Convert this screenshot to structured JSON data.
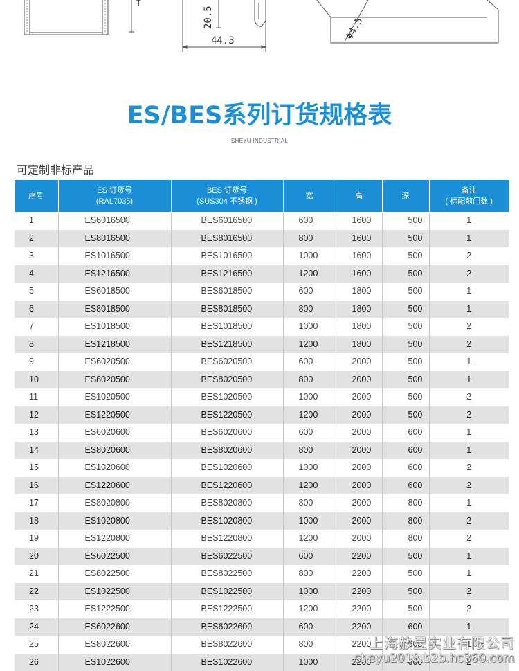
{
  "drawing": {
    "height_label": "20.5",
    "width_label": "44.3",
    "hole_label": "Φ4.5"
  },
  "title": "ES/BES系列订货规格表",
  "brand": "SHEYU INDUSTRIAL",
  "section": "可定制非标产品",
  "table": {
    "headers": [
      {
        "line1": "序号",
        "line2": ""
      },
      {
        "line1": "ES 订货号",
        "line2": "(RAL7035)"
      },
      {
        "line1": "BES 订货号",
        "line2": "(SUS304 不锈钢 )"
      },
      {
        "line1": "宽",
        "line2": ""
      },
      {
        "line1": "高",
        "line2": ""
      },
      {
        "line1": "深",
        "line2": ""
      },
      {
        "line1": "备注",
        "line2": "( 标配前门数 )"
      }
    ],
    "rows": [
      [
        "1",
        "ES6016500",
        "BES6016500",
        "600",
        "1600",
        "500",
        "1"
      ],
      [
        "2",
        "ES8016500",
        "BES8016500",
        "800",
        "1600",
        "500",
        "1"
      ],
      [
        "3",
        "ES1016500",
        "BES1016500",
        "1000",
        "1600",
        "500",
        "2"
      ],
      [
        "4",
        "ES1216500",
        "BES1216500",
        "1200",
        "1600",
        "500",
        "2"
      ],
      [
        "5",
        "ES6018500",
        "BES6018500",
        "600",
        "1800",
        "500",
        "1"
      ],
      [
        "6",
        "ES8018500",
        "BES8018500",
        "800",
        "1800",
        "500",
        "1"
      ],
      [
        "7",
        "ES1018500",
        "BES1018500",
        "1000",
        "1800",
        "500",
        "2"
      ],
      [
        "8",
        "ES1218500",
        "BES1218500",
        "1200",
        "1800",
        "500",
        "2"
      ],
      [
        "9",
        "ES6020500",
        "BES6020500",
        "600",
        "2000",
        "500",
        "1"
      ],
      [
        "10",
        "ES8020500",
        "BES8020500",
        "800",
        "2000",
        "500",
        "1"
      ],
      [
        "11",
        "ES1020500",
        "BES1020500",
        "1000",
        "2000",
        "500",
        "2"
      ],
      [
        "12",
        "ES1220500",
        "BES1220500",
        "1200",
        "2000",
        "500",
        "2"
      ],
      [
        "13",
        "ES6020600",
        "BES6020600",
        "600",
        "2000",
        "600",
        "1"
      ],
      [
        "14",
        "ES8020600",
        "BES8020600",
        "800",
        "2000",
        "600",
        "1"
      ],
      [
        "15",
        "ES1020600",
        "BES1020600",
        "1000",
        "2000",
        "600",
        "2"
      ],
      [
        "16",
        "ES1220600",
        "BES1220600",
        "1200",
        "2000",
        "600",
        "2"
      ],
      [
        "17",
        "ES8020800",
        "BES8020800",
        "800",
        "2000",
        "800",
        "1"
      ],
      [
        "18",
        "ES1020800",
        "BES1020800",
        "1000",
        "2000",
        "800",
        "2"
      ],
      [
        "19",
        "ES1220800",
        "BES1220800",
        "1200",
        "2000",
        "800",
        "2"
      ],
      [
        "20",
        "ES6022500",
        "BES6022500",
        "600",
        "2200",
        "500",
        "1"
      ],
      [
        "21",
        "ES8022500",
        "BES8022500",
        "800",
        "2200",
        "500",
        "1"
      ],
      [
        "22",
        "ES1022500",
        "BES1022500",
        "1000",
        "2200",
        "500",
        "2"
      ],
      [
        "23",
        "ES1222500",
        "BES1222500",
        "1200",
        "2200",
        "500",
        "2"
      ],
      [
        "24",
        "ES6022600",
        "BES6022600",
        "600",
        "2200",
        "600",
        "1"
      ],
      [
        "25",
        "ES8022600",
        "BES8022600",
        "800",
        "2200",
        "600",
        "1"
      ],
      [
        "26",
        "ES1022600",
        "BES1022600",
        "1000",
        "2200",
        "600",
        "2"
      ]
    ]
  },
  "watermark": {
    "line1": "上海赦昱实业有限公司",
    "line2": "sheyu2018.b2b.hc360.com"
  }
}
